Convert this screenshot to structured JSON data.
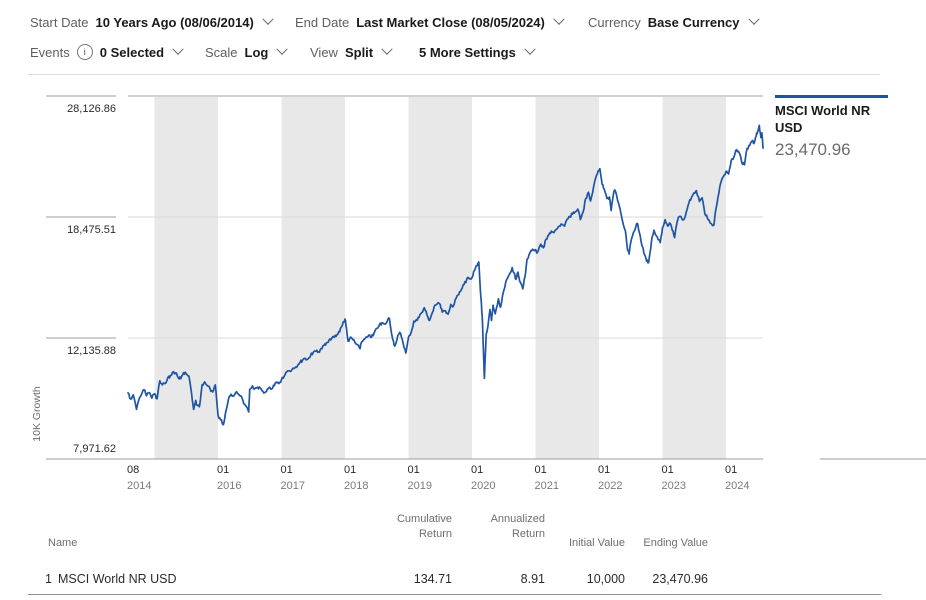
{
  "toolbar": {
    "row1": [
      {
        "label": "Start Date",
        "value": "10 Years Ago (08/06/2014)"
      },
      {
        "label": "End Date",
        "value": "Last Market Close (08/05/2024)"
      },
      {
        "label": "Currency",
        "value": "Base Currency"
      }
    ],
    "row2": [
      {
        "label": "Events",
        "value": "0 Selected"
      },
      {
        "label": "Scale",
        "value": "Log"
      },
      {
        "label": "View",
        "value": "Split"
      },
      {
        "label": "",
        "value": "5 More Settings"
      }
    ],
    "info_icon_glyph": "i"
  },
  "legend": {
    "name": "MSCI World NR USD",
    "value": "23,470.96"
  },
  "colors": {
    "series_blue": "#1e55a4",
    "band_gray": "#e8e8e8",
    "grid_light": "#dadada",
    "grid_top": "#a6a6a6",
    "axis_gray": "#9e9e9e",
    "tick_text": "#2a2a2a",
    "year_text": "#7a7a7a"
  },
  "chart_data": {
    "type": "line",
    "title": "",
    "xlabel": "",
    "ylabel": "10K Growth",
    "ylim": [
      7971.62,
      28126.86
    ],
    "grid": true,
    "legend_position": "right",
    "scale": "log",
    "yticks": [
      {
        "value": 28126.86,
        "label": "28,126.86"
      },
      {
        "value": 18475.51,
        "label": "18,475.51"
      },
      {
        "value": 12135.88,
        "label": "12,135.88"
      },
      {
        "value": 7971.62,
        "label": "7,971.62"
      }
    ],
    "xticks": [
      {
        "m": 0,
        "month": "08",
        "year": "2014"
      },
      {
        "m": 17,
        "month": "01",
        "year": "2016"
      },
      {
        "m": 29,
        "month": "01",
        "year": "2017"
      },
      {
        "m": 41,
        "month": "01",
        "year": "2018"
      },
      {
        "m": 53,
        "month": "01",
        "year": "2019"
      },
      {
        "m": 65,
        "month": "01",
        "year": "2020"
      },
      {
        "m": 77,
        "month": "01",
        "year": "2021"
      },
      {
        "m": 89,
        "month": "01",
        "year": "2022"
      },
      {
        "m": 101,
        "month": "01",
        "year": "2023"
      },
      {
        "m": 113,
        "month": "01",
        "year": "2024"
      }
    ],
    "bands_months": [
      [
        5,
        17
      ],
      [
        29,
        41
      ],
      [
        53,
        65
      ],
      [
        77,
        89
      ],
      [
        101,
        113
      ]
    ],
    "noise_pct": 0.55,
    "series": [
      {
        "name": "MSCI World NR USD",
        "color": "#1e55a4",
        "x_unit": "months_since_2014_08",
        "points": [
          [
            0,
            10030
          ],
          [
            0.5,
            9820
          ],
          [
            1,
            9960
          ],
          [
            1.6,
            9470
          ],
          [
            2,
            9760
          ],
          [
            2.5,
            9960
          ],
          [
            3,
            10140
          ],
          [
            3.5,
            9930
          ],
          [
            4,
            10040
          ],
          [
            4.5,
            9850
          ],
          [
            5,
            10000
          ],
          [
            5.5,
            9830
          ],
          [
            6,
            10460
          ],
          [
            6.5,
            10310
          ],
          [
            7,
            10360
          ],
          [
            7.5,
            10560
          ],
          [
            8,
            10650
          ],
          [
            8.6,
            10800
          ],
          [
            9,
            10750
          ],
          [
            9.5,
            10570
          ],
          [
            10,
            10540
          ],
          [
            10.5,
            10760
          ],
          [
            11,
            10720
          ],
          [
            11.5,
            10630
          ],
          [
            12,
            10030
          ],
          [
            12.4,
            9470
          ],
          [
            12.8,
            9770
          ],
          [
            13,
            9620
          ],
          [
            13.5,
            9560
          ],
          [
            14,
            10320
          ],
          [
            14.5,
            10420
          ],
          [
            15,
            10280
          ],
          [
            15.5,
            10180
          ],
          [
            16,
            10060
          ],
          [
            16.5,
            10310
          ],
          [
            17,
            9290
          ],
          [
            17.5,
            9130
          ],
          [
            18,
            8980
          ],
          [
            18.4,
            9340
          ],
          [
            19,
            9820
          ],
          [
            19.5,
            9980
          ],
          [
            20,
            9920
          ],
          [
            20.5,
            10070
          ],
          [
            21,
            9960
          ],
          [
            21.6,
            9830
          ],
          [
            22,
            9650
          ],
          [
            22.8,
            9390
          ],
          [
            23,
            10140
          ],
          [
            23.5,
            10280
          ],
          [
            24,
            10180
          ],
          [
            24.5,
            10230
          ],
          [
            25,
            10200
          ],
          [
            25.5,
            10090
          ],
          [
            26,
            10060
          ],
          [
            26.5,
            10180
          ],
          [
            27,
            10160
          ],
          [
            27.5,
            10300
          ],
          [
            28,
            10410
          ],
          [
            28.5,
            10360
          ],
          [
            29,
            10500
          ],
          [
            29.5,
            10620
          ],
          [
            30,
            10790
          ],
          [
            30.5,
            10830
          ],
          [
            31,
            10870
          ],
          [
            31.5,
            10930
          ],
          [
            32,
            11000
          ],
          [
            32.5,
            11150
          ],
          [
            33,
            11240
          ],
          [
            33.5,
            11300
          ],
          [
            34,
            11280
          ],
          [
            34.5,
            11420
          ],
          [
            35,
            11540
          ],
          [
            35.5,
            11590
          ],
          [
            36,
            11570
          ],
          [
            36.5,
            11700
          ],
          [
            37,
            11820
          ],
          [
            37.5,
            11940
          ],
          [
            38,
            12050
          ],
          [
            38.5,
            12120
          ],
          [
            39,
            12160
          ],
          [
            39.5,
            12280
          ],
          [
            40,
            12400
          ],
          [
            40.5,
            12680
          ],
          [
            41,
            12960
          ],
          [
            41.3,
            12550
          ],
          [
            41.6,
            12000
          ],
          [
            42,
            12170
          ],
          [
            42.5,
            12060
          ],
          [
            43,
            11910
          ],
          [
            43.8,
            11700
          ],
          [
            44,
            11880
          ],
          [
            44.5,
            12050
          ],
          [
            45,
            12180
          ],
          [
            45.5,
            12260
          ],
          [
            46,
            12160
          ],
          [
            46.5,
            12350
          ],
          [
            47,
            12550
          ],
          [
            47.5,
            12700
          ],
          [
            48,
            12800
          ],
          [
            48.5,
            12740
          ],
          [
            49,
            12870
          ],
          [
            49.4,
            12980
          ],
          [
            50,
            12100
          ],
          [
            50.4,
            11800
          ],
          [
            51,
            12250
          ],
          [
            51.5,
            12340
          ],
          [
            52,
            11900
          ],
          [
            52.5,
            11520
          ],
          [
            52.8,
            11900
          ],
          [
            53,
            12170
          ],
          [
            53.5,
            12360
          ],
          [
            54,
            12870
          ],
          [
            54.5,
            12940
          ],
          [
            55,
            13030
          ],
          [
            55.5,
            13260
          ],
          [
            56,
            13480
          ],
          [
            56.5,
            13140
          ],
          [
            57,
            12900
          ],
          [
            57.5,
            13250
          ],
          [
            58,
            13600
          ],
          [
            58.5,
            13690
          ],
          [
            59,
            13640
          ],
          [
            59.4,
            13280
          ],
          [
            60,
            13340
          ],
          [
            60.5,
            13180
          ],
          [
            61,
            13640
          ],
          [
            61.5,
            13560
          ],
          [
            62,
            13930
          ],
          [
            62.5,
            14110
          ],
          [
            63,
            14370
          ],
          [
            63.5,
            14610
          ],
          [
            64,
            14880
          ],
          [
            64.5,
            14900
          ],
          [
            65,
            14970
          ],
          [
            65.5,
            15350
          ],
          [
            66,
            15600
          ],
          [
            66.3,
            15800
          ],
          [
            66.6,
            14300
          ],
          [
            66.8,
            13600
          ],
          [
            67,
            12800
          ],
          [
            67.2,
            11400
          ],
          [
            67.35,
            10550
          ],
          [
            67.7,
            12300
          ],
          [
            68,
            12600
          ],
          [
            68.4,
            13400
          ],
          [
            68.7,
            12900
          ],
          [
            69,
            13600
          ],
          [
            69.4,
            13200
          ],
          [
            70,
            13900
          ],
          [
            70.4,
            13500
          ],
          [
            71,
            14300
          ],
          [
            71.6,
            14900
          ],
          [
            72,
            15100
          ],
          [
            72.6,
            15500
          ],
          [
            73,
            15200
          ],
          [
            73.3,
            14880
          ],
          [
            73.7,
            15260
          ],
          [
            74,
            14800
          ],
          [
            74.6,
            14400
          ],
          [
            75,
            15000
          ],
          [
            75.4,
            15950
          ],
          [
            76,
            16350
          ],
          [
            76.5,
            16520
          ],
          [
            77,
            16500
          ],
          [
            77.3,
            16300
          ],
          [
            78,
            16810
          ],
          [
            78.5,
            16600
          ],
          [
            79,
            17100
          ],
          [
            79.5,
            17350
          ],
          [
            80,
            17590
          ],
          [
            80.5,
            17500
          ],
          [
            81,
            17710
          ],
          [
            81.5,
            17900
          ],
          [
            82,
            18020
          ],
          [
            82.5,
            17900
          ],
          [
            83,
            18340
          ],
          [
            83.5,
            18500
          ],
          [
            84,
            18660
          ],
          [
            84.5,
            18800
          ],
          [
            85,
            18990
          ],
          [
            85.5,
            18300
          ],
          [
            86,
            18800
          ],
          [
            86.5,
            19700
          ],
          [
            87,
            20130
          ],
          [
            87.4,
            19530
          ],
          [
            88,
            20560
          ],
          [
            88.6,
            21400
          ],
          [
            89,
            21700
          ],
          [
            89.2,
            21830
          ],
          [
            89.6,
            20700
          ],
          [
            90,
            20350
          ],
          [
            90.5,
            19700
          ],
          [
            91,
            19800
          ],
          [
            91.3,
            18900
          ],
          [
            91.7,
            19900
          ],
          [
            92,
            20300
          ],
          [
            92.5,
            19600
          ],
          [
            93,
            19000
          ],
          [
            93.4,
            18300
          ],
          [
            94,
            17600
          ],
          [
            94.4,
            16500
          ],
          [
            94.7,
            16250
          ],
          [
            95,
            16900
          ],
          [
            95.5,
            17500
          ],
          [
            96,
            17900
          ],
          [
            96.3,
            18050
          ],
          [
            97,
            16900
          ],
          [
            97.5,
            16300
          ],
          [
            98,
            15850
          ],
          [
            98.4,
            15780
          ],
          [
            98.8,
            16600
          ],
          [
            99,
            17200
          ],
          [
            99.4,
            17650
          ],
          [
            100,
            17250
          ],
          [
            100.6,
            16900
          ],
          [
            101,
            17800
          ],
          [
            101.5,
            18300
          ],
          [
            102,
            17900
          ],
          [
            102.5,
            18050
          ],
          [
            103,
            17600
          ],
          [
            103.3,
            17200
          ],
          [
            103.7,
            18000
          ],
          [
            104,
            18450
          ],
          [
            104.5,
            18500
          ],
          [
            105,
            18300
          ],
          [
            105.5,
            18800
          ],
          [
            106,
            19400
          ],
          [
            106.5,
            19800
          ],
          [
            107,
            20100
          ],
          [
            107.4,
            20250
          ],
          [
            108,
            19500
          ],
          [
            108.5,
            19750
          ],
          [
            109,
            18700
          ],
          [
            109.5,
            18400
          ],
          [
            110,
            18100
          ],
          [
            110.7,
            17950
          ],
          [
            111,
            18800
          ],
          [
            111.5,
            19800
          ],
          [
            112,
            20800
          ],
          [
            112.5,
            21250
          ],
          [
            113,
            21650
          ],
          [
            113.5,
            21450
          ],
          [
            114,
            22500
          ],
          [
            114.5,
            22750
          ],
          [
            115,
            23350
          ],
          [
            115.5,
            23100
          ],
          [
            116,
            22300
          ],
          [
            116.5,
            22150
          ],
          [
            117,
            23450
          ],
          [
            117.5,
            23700
          ],
          [
            118,
            24100
          ],
          [
            118.3,
            23850
          ],
          [
            118.7,
            24450
          ],
          [
            119,
            24900
          ],
          [
            119.3,
            25400
          ],
          [
            119.6,
            24350
          ],
          [
            119.8,
            24750
          ],
          [
            120,
            23470.96
          ]
        ]
      }
    ]
  },
  "table": {
    "headers": {
      "name": "Name",
      "cumulative_l1": "Cumulative",
      "cumulative_l2": "Return",
      "annualized_l1": "Annualized",
      "annualized_l2": "Return",
      "initial": "Initial Value",
      "ending": "Ending Value"
    },
    "rows": [
      {
        "rank": "1",
        "name": "MSCI World NR USD",
        "cumulative": "134.71",
        "annualized": "8.91",
        "initial": "10,000",
        "ending": "23,470.96"
      }
    ]
  }
}
